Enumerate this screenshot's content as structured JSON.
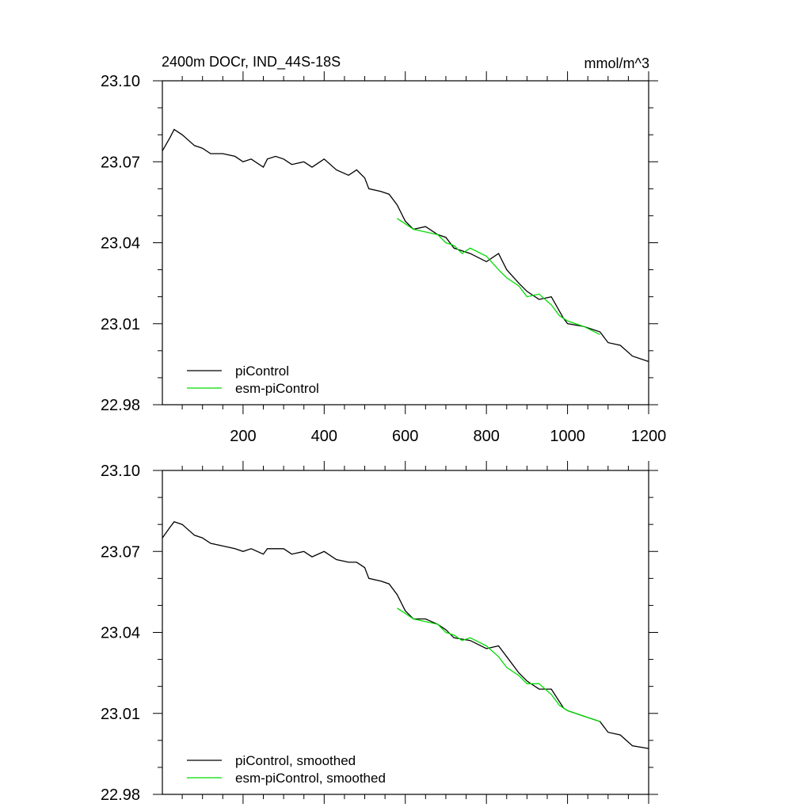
{
  "chart_data": [
    {
      "type": "line",
      "title": "2400m DOCr, IND_44S-18S",
      "units": "mmol/m^3",
      "xlabel": "",
      "ylabel": "",
      "xlim": [
        1,
        1200
      ],
      "ylim": [
        22.98,
        23.1
      ],
      "xticks": [
        200,
        400,
        600,
        800,
        1000,
        1200
      ],
      "xtick_labels": [
        "200",
        "400",
        "600",
        "800",
        "1000",
        "1200"
      ],
      "yticks": [
        22.98,
        23.01,
        23.04,
        23.07,
        23.1
      ],
      "ytick_labels": [
        "22.98",
        "23.01",
        "23.04",
        "23.07",
        "23.10"
      ],
      "grid": false,
      "legend_position": "bottom-left",
      "series": [
        {
          "name": "piControl",
          "color": "#000000",
          "x": [
            1,
            20,
            30,
            50,
            80,
            100,
            120,
            150,
            180,
            200,
            220,
            250,
            260,
            280,
            300,
            320,
            350,
            370,
            400,
            430,
            460,
            480,
            500,
            510,
            540,
            560,
            580,
            600,
            620,
            650,
            680,
            700,
            720,
            760,
            800,
            830,
            850,
            880,
            900,
            930,
            960,
            990,
            1000,
            1040,
            1080,
            1100,
            1130,
            1160,
            1200
          ],
          "values": [
            23.074,
            23.079,
            23.082,
            23.08,
            23.076,
            23.075,
            23.073,
            23.073,
            23.072,
            23.07,
            23.071,
            23.068,
            23.071,
            23.072,
            23.071,
            23.069,
            23.07,
            23.068,
            23.071,
            23.067,
            23.065,
            23.067,
            23.064,
            23.06,
            23.059,
            23.058,
            23.054,
            23.048,
            23.045,
            23.046,
            23.043,
            23.042,
            23.038,
            23.036,
            23.033,
            23.036,
            23.03,
            23.025,
            23.022,
            23.019,
            23.02,
            23.012,
            23.01,
            23.009,
            23.007,
            23.003,
            23.002,
            22.998,
            22.996
          ]
        },
        {
          "name": "esm-piControl",
          "color": "#00dd00",
          "x": [
            580,
            600,
            620,
            650,
            680,
            700,
            720,
            740,
            760,
            800,
            830,
            850,
            880,
            900,
            930,
            960,
            980,
            1000,
            1040,
            1080
          ],
          "values": [
            23.049,
            23.047,
            23.045,
            23.044,
            23.043,
            23.04,
            23.039,
            23.036,
            23.038,
            23.035,
            23.03,
            23.027,
            23.024,
            23.02,
            23.021,
            23.017,
            23.013,
            23.011,
            23.009,
            23.006
          ]
        }
      ]
    },
    {
      "type": "line",
      "title": "",
      "xlabel": "",
      "ylabel": "",
      "xlim": [
        1,
        1200
      ],
      "ylim": [
        22.98,
        23.1
      ],
      "xticks": [
        200,
        400,
        600,
        800,
        1000,
        1200
      ],
      "yticks": [
        22.98,
        23.01,
        23.04,
        23.07,
        23.1
      ],
      "ytick_labels": [
        "22.98",
        "23.01",
        "23.04",
        "23.07",
        "23.10"
      ],
      "grid": false,
      "legend_position": "bottom-left",
      "series": [
        {
          "name": "piControl, smoothed",
          "color": "#000000",
          "x": [
            1,
            20,
            30,
            50,
            80,
            100,
            120,
            150,
            180,
            200,
            220,
            250,
            260,
            280,
            300,
            320,
            350,
            370,
            400,
            430,
            460,
            480,
            500,
            510,
            540,
            560,
            580,
            600,
            620,
            650,
            680,
            700,
            720,
            760,
            800,
            830,
            850,
            880,
            900,
            930,
            960,
            990,
            1000,
            1040,
            1080,
            1100,
            1130,
            1160,
            1200
          ],
          "values": [
            23.075,
            23.079,
            23.081,
            23.08,
            23.076,
            23.075,
            23.073,
            23.072,
            23.071,
            23.07,
            23.071,
            23.069,
            23.071,
            23.071,
            23.071,
            23.069,
            23.07,
            23.068,
            23.07,
            23.067,
            23.066,
            23.066,
            23.064,
            23.06,
            23.059,
            23.058,
            23.054,
            23.048,
            23.045,
            23.045,
            23.043,
            23.041,
            23.038,
            23.037,
            23.034,
            23.035,
            23.031,
            23.025,
            23.022,
            23.019,
            23.019,
            23.012,
            23.011,
            23.009,
            23.007,
            23.003,
            23.002,
            22.998,
            22.997
          ]
        },
        {
          "name": "esm-piControl, smoothed",
          "color": "#00dd00",
          "x": [
            580,
            600,
            620,
            650,
            680,
            700,
            720,
            740,
            760,
            800,
            830,
            850,
            880,
            900,
            930,
            960,
            980,
            1000,
            1040,
            1080
          ],
          "values": [
            23.049,
            23.047,
            23.045,
            23.044,
            23.043,
            23.04,
            23.039,
            23.037,
            23.038,
            23.035,
            23.031,
            23.027,
            23.024,
            23.021,
            23.021,
            23.017,
            23.013,
            23.011,
            23.009,
            23.007
          ]
        }
      ]
    }
  ]
}
